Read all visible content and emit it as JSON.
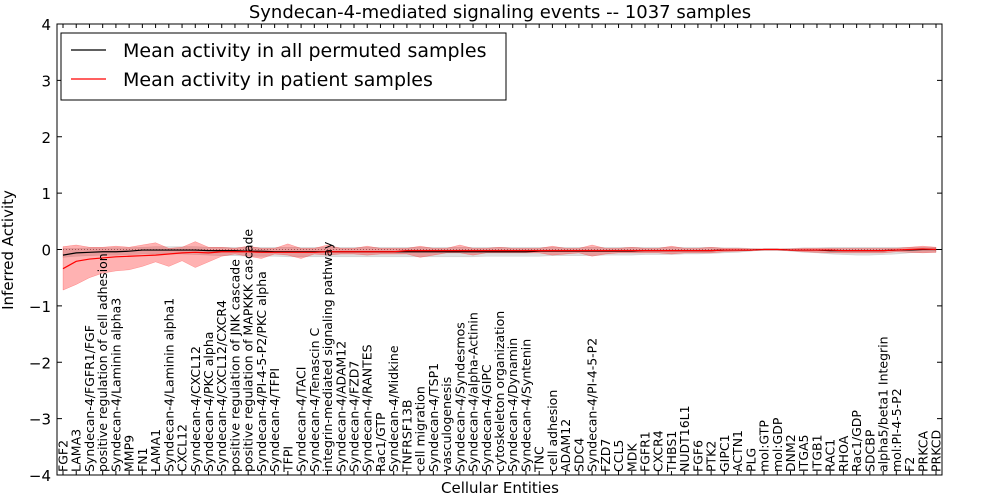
{
  "chart_data": {
    "type": "line",
    "title": "Syndecan-4-mediated signaling events -- 1037 samples",
    "xlabel": "Cellular Entities",
    "ylabel": "Inferred Activity",
    "ylim": [
      -4,
      4
    ],
    "yticks": [
      -4,
      -3,
      -2,
      -1,
      0,
      1,
      2,
      3,
      4
    ],
    "legend_position": "top-left",
    "categories": [
      "FGF2",
      "LAMA3",
      "Syndecan-4/FGFR1/FGF",
      "positive regulation of cell adhesion",
      "Syndecan-4/Laminin alpha3",
      "MMP9",
      "FN1",
      "LAMA1",
      "Syndecan-4/Laminin alpha1",
      "CXCL12",
      "Syndecan-4/CXCL12",
      "Syndecan-4/PKC alpha",
      "Syndecan-4/CXCL12/CXCR4",
      "positive regulation of JNK cascade",
      "positive regulation of MAPKKK cascade",
      "Syndecan-4/PI-4-5-P2/PKC alpha",
      "Syndecan-4/TFPI",
      "TFPI",
      "Syndecan-4/TACI",
      "Syndecan-4/Tenascin C",
      "integrin-mediated signaling pathway",
      "Syndecan-4/ADAM12",
      "Syndecan-4/FZD7",
      "Syndecan-4/RANTES",
      "Rac1/GTP",
      "Syndecan-4/Midkine",
      "TNFRSF13B",
      "cell migration",
      "Syndecan-4/TSP1",
      "vasculogenesis",
      "Syndecan-4/Syndesmos",
      "Syndecan-4/alpha-Actinin",
      "Syndecan-4/GIPC",
      "cytoskeleton organization",
      "Syndecan-4/Dynamin",
      "Syndecan-4/Syntenin",
      "TNC",
      "cell adhesion",
      "ADAM12",
      "SDC4",
      "Syndecan-4/PI-4-5-P2",
      "FZD7",
      "CCL5",
      "MDK",
      "FGFR1",
      "CXCR4",
      "THBS1",
      "NUDT16L1",
      "FGF6",
      "PTK2",
      "GIPC1",
      "ACTN1",
      "PLG",
      "mol:GTP",
      "mol:GDP",
      "DNM2",
      "ITGA5",
      "ITGB1",
      "RAC1",
      "RHOA",
      "Rac1/GDP",
      "SDCBP",
      "alpha5/beta1 Integrin",
      "mol:PI-4-5-P2",
      "F2",
      "PRKCA",
      "PRKCD"
    ],
    "series": [
      {
        "name": "Mean activity in all permuted samples",
        "color": "#000000",
        "values": [
          -0.1,
          -0.06,
          -0.05,
          -0.04,
          -0.04,
          -0.03,
          -0.01,
          -0.01,
          -0.01,
          -0.01,
          -0.01,
          -0.02,
          -0.02,
          -0.02,
          -0.03,
          -0.03,
          -0.04,
          -0.04,
          -0.04,
          -0.04,
          -0.04,
          -0.04,
          -0.04,
          -0.04,
          -0.04,
          -0.04,
          -0.04,
          -0.04,
          -0.04,
          -0.04,
          -0.04,
          -0.04,
          -0.04,
          -0.04,
          -0.04,
          -0.04,
          -0.03,
          -0.03,
          -0.03,
          -0.03,
          -0.03,
          -0.03,
          -0.03,
          -0.03,
          -0.02,
          -0.02,
          -0.02,
          -0.02,
          -0.02,
          -0.02,
          -0.01,
          -0.01,
          -0.01,
          0.0,
          0.0,
          -0.01,
          -0.01,
          -0.01,
          -0.02,
          -0.02,
          -0.02,
          -0.02,
          -0.02,
          -0.01,
          -0.01,
          0.0,
          0.0
        ],
        "band_lower": [
          -0.14,
          -0.12,
          -0.11,
          -0.1,
          -0.1,
          -0.09,
          -0.08,
          -0.08,
          -0.08,
          -0.08,
          -0.09,
          -0.1,
          -0.11,
          -0.11,
          -0.12,
          -0.12,
          -0.12,
          -0.13,
          -0.13,
          -0.13,
          -0.13,
          -0.13,
          -0.13,
          -0.13,
          -0.13,
          -0.13,
          -0.13,
          -0.13,
          -0.13,
          -0.13,
          -0.13,
          -0.13,
          -0.12,
          -0.12,
          -0.12,
          -0.12,
          -0.12,
          -0.11,
          -0.11,
          -0.11,
          -0.11,
          -0.1,
          -0.1,
          -0.1,
          -0.09,
          -0.09,
          -0.09,
          -0.08,
          -0.08,
          -0.07,
          -0.06,
          -0.05,
          -0.03,
          -0.01,
          -0.01,
          -0.03,
          -0.05,
          -0.06,
          -0.08,
          -0.09,
          -0.1,
          -0.1,
          -0.09,
          -0.08,
          -0.06,
          -0.05,
          -0.05
        ],
        "band_upper": [
          0.02,
          0.02,
          0.03,
          0.03,
          0.03,
          0.03,
          0.04,
          0.05,
          0.05,
          0.05,
          0.05,
          0.04,
          0.04,
          0.04,
          0.04,
          0.04,
          0.04,
          0.04,
          0.04,
          0.04,
          0.04,
          0.04,
          0.04,
          0.04,
          0.04,
          0.04,
          0.04,
          0.04,
          0.04,
          0.04,
          0.04,
          0.04,
          0.04,
          0.04,
          0.04,
          0.04,
          0.04,
          0.04,
          0.04,
          0.04,
          0.04,
          0.04,
          0.04,
          0.04,
          0.04,
          0.04,
          0.04,
          0.04,
          0.04,
          0.04,
          0.03,
          0.03,
          0.02,
          0.01,
          0.01,
          0.02,
          0.03,
          0.03,
          0.04,
          0.04,
          0.04,
          0.04,
          0.04,
          0.04,
          0.04,
          0.04,
          0.04
        ]
      },
      {
        "name": "Mean activity in patient samples",
        "color": "#ff0000",
        "values": [
          -0.34,
          -0.21,
          -0.17,
          -0.15,
          -0.13,
          -0.12,
          -0.11,
          -0.1,
          -0.08,
          -0.06,
          -0.05,
          -0.06,
          -0.04,
          -0.04,
          -0.04,
          -0.05,
          -0.05,
          -0.05,
          -0.05,
          -0.05,
          -0.04,
          -0.04,
          -0.04,
          -0.04,
          -0.04,
          -0.04,
          -0.02,
          -0.02,
          -0.02,
          -0.02,
          -0.02,
          -0.02,
          -0.02,
          -0.02,
          -0.02,
          -0.02,
          -0.02,
          -0.02,
          -0.02,
          -0.02,
          -0.02,
          -0.02,
          -0.02,
          -0.02,
          -0.02,
          -0.02,
          -0.02,
          -0.02,
          -0.02,
          -0.02,
          -0.01,
          -0.01,
          -0.01,
          0.0,
          0.0,
          -0.01,
          -0.01,
          -0.01,
          -0.01,
          -0.02,
          -0.02,
          -0.02,
          -0.02,
          -0.01,
          0.0,
          0.01,
          0.0
        ],
        "band_lower": [
          -0.72,
          -0.62,
          -0.5,
          -0.42,
          -0.38,
          -0.36,
          -0.3,
          -0.22,
          -0.3,
          -0.2,
          -0.32,
          -0.22,
          -0.12,
          -0.08,
          -0.12,
          -0.16,
          -0.08,
          -0.1,
          -0.16,
          -0.08,
          -0.1,
          -0.08,
          -0.08,
          -0.1,
          -0.08,
          -0.08,
          -0.08,
          -0.14,
          -0.1,
          -0.06,
          -0.06,
          -0.1,
          -0.06,
          -0.06,
          -0.06,
          -0.06,
          -0.06,
          -0.1,
          -0.08,
          -0.06,
          -0.12,
          -0.08,
          -0.06,
          -0.06,
          -0.06,
          -0.06,
          -0.08,
          -0.06,
          -0.06,
          -0.06,
          -0.04,
          -0.03,
          -0.02,
          -0.01,
          -0.01,
          -0.02,
          -0.04,
          -0.05,
          -0.06,
          -0.06,
          -0.06,
          -0.06,
          -0.06,
          -0.04,
          -0.05,
          -0.06,
          -0.05
        ],
        "band_upper": [
          0.05,
          0.08,
          0.04,
          0.04,
          0.06,
          0.04,
          0.08,
          0.12,
          0.02,
          0.04,
          0.14,
          0.04,
          0.04,
          0.02,
          0.06,
          0.02,
          0.02,
          0.1,
          0.02,
          0.02,
          0.08,
          0.02,
          0.02,
          0.06,
          0.02,
          0.02,
          0.02,
          0.06,
          0.02,
          0.02,
          0.08,
          0.02,
          0.02,
          0.04,
          0.02,
          0.02,
          0.02,
          0.06,
          0.02,
          0.02,
          0.08,
          0.02,
          0.02,
          0.04,
          0.02,
          0.02,
          0.06,
          0.02,
          0.02,
          0.04,
          0.02,
          0.02,
          0.01,
          0.01,
          0.01,
          0.01,
          0.02,
          0.02,
          0.02,
          0.02,
          0.02,
          0.02,
          0.02,
          0.02,
          0.04,
          0.06,
          0.04
        ]
      }
    ]
  },
  "colors": {
    "permuted_line": "#000000",
    "permuted_band": "#c8c8c8",
    "patient_line": "#ff0000",
    "patient_band": "#ff0000"
  }
}
